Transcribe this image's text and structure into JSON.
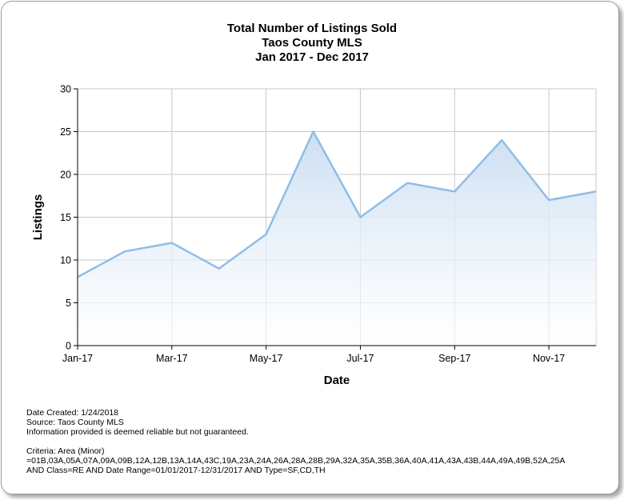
{
  "chart_data": {
    "type": "area",
    "title": [
      "Total Number of Listings Sold",
      "Taos County MLS",
      "Jan 2017 - Dec 2017"
    ],
    "xlabel": "Date",
    "ylabel": "Listings",
    "categories": [
      "Jan-17",
      "Feb-17",
      "Mar-17",
      "Apr-17",
      "May-17",
      "Jun-17",
      "Jul-17",
      "Aug-17",
      "Sep-17",
      "Oct-17",
      "Nov-17",
      "Dec-17"
    ],
    "x_tick_labels": [
      "Jan-17",
      "Mar-17",
      "May-17",
      "Jul-17",
      "Sep-17",
      "Nov-17"
    ],
    "values": [
      8,
      11,
      12,
      9,
      13,
      25,
      15,
      19,
      18,
      24,
      17,
      18
    ],
    "ylim": [
      0,
      30
    ],
    "y_ticks": [
      0,
      5,
      10,
      15,
      20,
      25,
      30
    ],
    "grid": true,
    "line_color": "#8fbde6",
    "fill_color": "#dbe9f7"
  },
  "footer": {
    "date_created": "Date Created: 1/24/2018",
    "source": "Source: Taos County MLS",
    "disclaimer": "Information provided is deemed reliable but not guaranteed.",
    "criteria_label": "Criteria: Area (Minor)",
    "criteria_areas": "=01B,03A,05A,07A,09A,09B,12A,12B,13A,14A,43C,19A,23A,24A,26A,28A,28B,29A,32A,35A,35B,36A,40A,41A,43A,43B,44A,49A,49B,52A,25A",
    "criteria_rest": "AND Class=RE AND Date Range=01/01/2017-12/31/2017 AND Type=SF,CD,TH"
  }
}
